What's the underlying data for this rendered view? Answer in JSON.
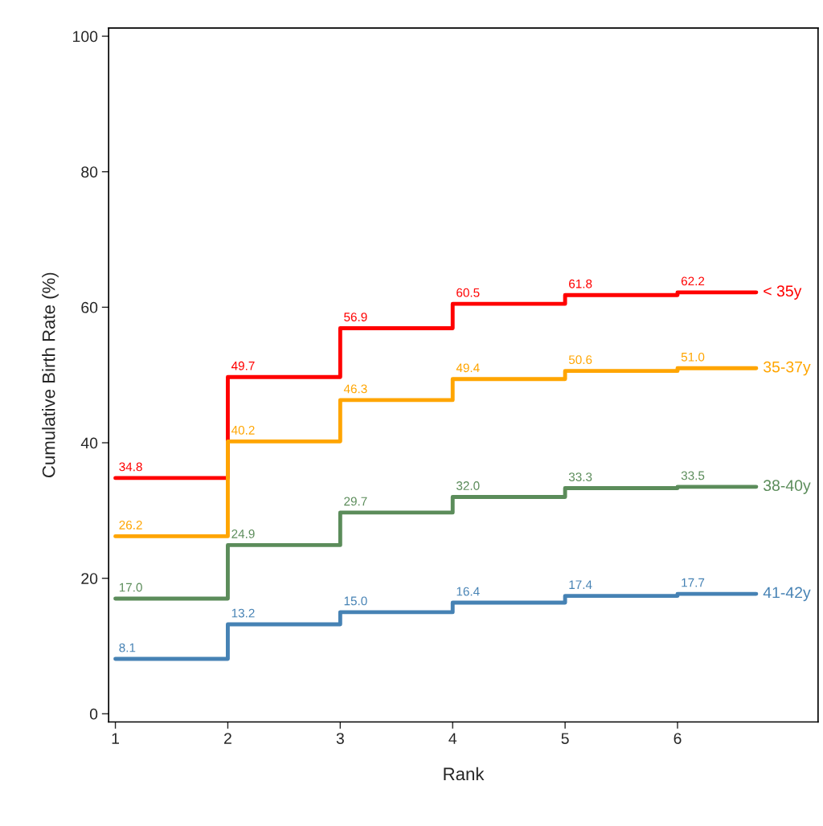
{
  "chart_data": {
    "type": "step",
    "xlabel": "Rank",
    "ylabel": "Cumulative Birth Rate (%)",
    "xlim": [
      0.94,
      7.25
    ],
    "ylim": [
      -1.2,
      101.2
    ],
    "xticks": [
      1,
      2,
      3,
      4,
      5,
      6
    ],
    "yticks": [
      0,
      20,
      40,
      60,
      80,
      100
    ],
    "grid": false,
    "legend": false,
    "marker": "none",
    "line_style": "solid",
    "x": [
      1,
      2,
      3,
      4,
      5,
      6,
      6.7
    ],
    "series": [
      {
        "name": "< 35y",
        "color": "#ff0000",
        "values": [
          34.8,
          49.7,
          56.9,
          60.5,
          61.8,
          62.2,
          62.2
        ],
        "value_labels": [
          "34.8",
          "49.7",
          "56.9",
          "60.5",
          "61.8",
          "62.2",
          null
        ]
      },
      {
        "name": "35-37y",
        "color": "#ffa500",
        "values": [
          26.2,
          40.2,
          46.3,
          49.4,
          50.6,
          51.0,
          51.0
        ],
        "value_labels": [
          "26.2",
          "40.2",
          "46.3",
          "49.4",
          "50.6",
          "51.0",
          null
        ]
      },
      {
        "name": "38-40y",
        "color": "#5b8c5a",
        "values": [
          17.0,
          24.9,
          29.7,
          32.0,
          33.3,
          33.5,
          33.5
        ],
        "value_labels": [
          "17.0",
          "24.9",
          "29.7",
          "32.0",
          "33.3",
          "33.5",
          null
        ]
      },
      {
        "name": "41-42y",
        "color": "#4682b4",
        "values": [
          8.1,
          13.2,
          15.0,
          16.4,
          17.4,
          17.7,
          17.7
        ],
        "value_labels": [
          "8.1",
          "13.2",
          "15.0",
          "16.4",
          "17.4",
          "17.7",
          null
        ]
      }
    ]
  }
}
